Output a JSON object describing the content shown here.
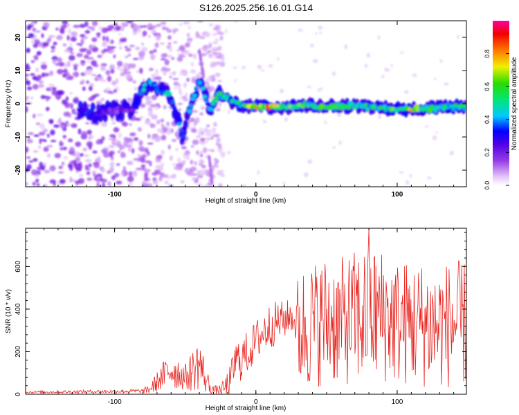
{
  "figure": {
    "title": "S126.2025.256.16.01.G14"
  },
  "chart_data": [
    {
      "type": "heatmap",
      "name": "spectrogram",
      "xlabel": "Height of straight line (km)",
      "ylabel": "Frequency (Hz)",
      "xlim": [
        -163,
        149
      ],
      "ylim": [
        -25,
        25
      ],
      "xticks": [
        -100,
        0,
        100
      ],
      "yticks": [
        -20,
        -10,
        0,
        10,
        20
      ],
      "colorbar": {
        "label": "Normalized spectral amplitude",
        "range": [
          0,
          1
        ],
        "ticks": [
          "0.0",
          "0.2",
          "0.4",
          "0.6",
          "0.8"
        ]
      },
      "ridge": [
        {
          "x": -123,
          "y": -2.5,
          "a": 0.35
        },
        {
          "x": -112,
          "y": -3.0,
          "a": 0.3
        },
        {
          "x": -100,
          "y": -2.0,
          "a": 0.2
        },
        {
          "x": -88,
          "y": -1.5,
          "a": 0.25
        },
        {
          "x": -79,
          "y": 5.0,
          "a": 0.45
        },
        {
          "x": -74,
          "y": 6.5,
          "a": 0.4
        },
        {
          "x": -68,
          "y": 4.0,
          "a": 0.5
        },
        {
          "x": -62,
          "y": 3.0,
          "a": 0.45
        },
        {
          "x": -56,
          "y": -3.0,
          "a": 0.4
        },
        {
          "x": -52,
          "y": -10.0,
          "a": 0.35
        },
        {
          "x": -48,
          "y": -3.0,
          "a": 0.4
        },
        {
          "x": -40,
          "y": 7.0,
          "a": 0.45
        },
        {
          "x": -32,
          "y": -2.0,
          "a": 0.4
        },
        {
          "x": -27,
          "y": 3.0,
          "a": 0.55
        },
        {
          "x": -18,
          "y": 1.0,
          "a": 0.5
        },
        {
          "x": -10,
          "y": -0.5,
          "a": 0.55
        },
        {
          "x": 5,
          "y": -1.0,
          "a": 0.85
        },
        {
          "x": 20,
          "y": -1.0,
          "a": 0.65
        },
        {
          "x": 35,
          "y": -0.5,
          "a": 0.6
        },
        {
          "x": 50,
          "y": -1.0,
          "a": 0.6
        },
        {
          "x": 65,
          "y": -0.5,
          "a": 0.6
        },
        {
          "x": 80,
          "y": -1.0,
          "a": 0.55
        },
        {
          "x": 95,
          "y": -1.5,
          "a": 0.6
        },
        {
          "x": 110,
          "y": -1.5,
          "a": 0.75
        },
        {
          "x": 125,
          "y": -1.5,
          "a": 0.6
        },
        {
          "x": 140,
          "y": -1.0,
          "a": 0.55
        }
      ]
    },
    {
      "type": "line",
      "name": "snr",
      "xlabel": "Height of straight line (km)",
      "ylabel": "SNR (10 * v/v)",
      "xlim": [
        -163,
        149
      ],
      "ylim": [
        0,
        780
      ],
      "xticks": [
        -100,
        0,
        100
      ],
      "yticks": [
        0,
        200,
        400,
        600
      ],
      "color": "#e8231e",
      "envelope": {
        "x": [
          -163,
          -120,
          -80,
          -75,
          -65,
          -60,
          -50,
          -45,
          -40,
          -35,
          -30,
          -25,
          -22,
          -18,
          -15,
          -10,
          -5,
          0,
          5,
          10,
          15,
          20,
          25,
          28,
          30,
          40,
          50,
          60,
          70,
          80,
          90,
          100,
          110,
          120,
          130,
          140,
          149
        ],
        "mean": [
          10,
          12,
          15,
          25,
          90,
          120,
          80,
          110,
          150,
          60,
          20,
          20,
          30,
          60,
          150,
          170,
          200,
          250,
          290,
          320,
          340,
          350,
          370,
          330,
          300,
          330,
          350,
          340,
          360,
          370,
          370,
          340,
          330,
          330,
          320,
          330,
          330
        ],
        "amp": [
          6,
          8,
          10,
          25,
          70,
          100,
          60,
          100,
          130,
          60,
          20,
          25,
          50,
          80,
          100,
          110,
          100,
          100,
          110,
          110,
          100,
          90,
          80,
          60,
          300,
          300,
          310,
          300,
          320,
          340,
          320,
          300,
          300,
          300,
          300,
          300,
          300
        ]
      },
      "peak": {
        "x": 80,
        "y": 780
      }
    }
  ]
}
